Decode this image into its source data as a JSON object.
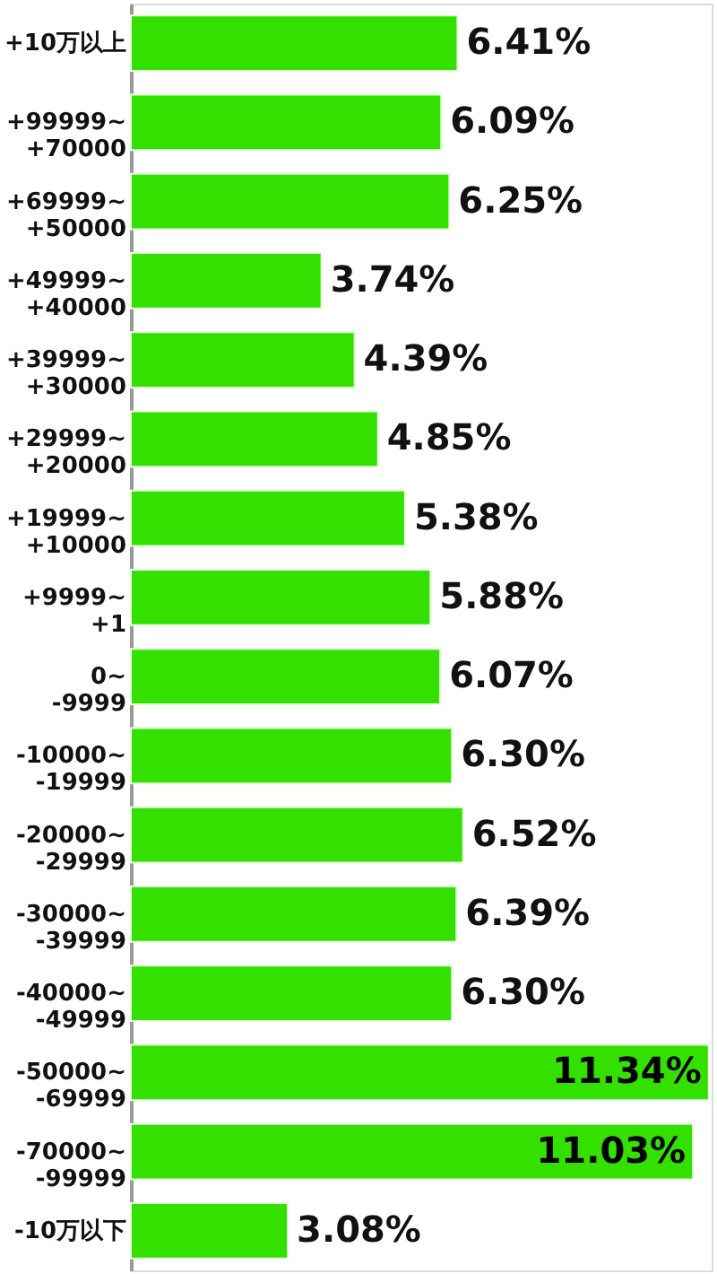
{
  "chart_data": {
    "type": "bar",
    "orientation": "horizontal",
    "categories": [
      "+10万以上",
      "+99999~+70000",
      "+69999~+50000",
      "+49999~+40000",
      "+39999~+30000",
      "+29999~+20000",
      "+19999~+10000",
      "+9999~+1",
      "0~-9999",
      "-10000~-19999",
      "-20000~-29999",
      "-30000~-39999",
      "-40000~-49999",
      "-50000~-69999",
      "-70000~-99999",
      "-10万以下"
    ],
    "values": [
      6.41,
      6.09,
      6.25,
      3.74,
      4.39,
      4.85,
      5.38,
      5.88,
      6.07,
      6.3,
      6.52,
      6.39,
      6.3,
      11.34,
      11.03,
      3.08
    ],
    "value_labels": [
      "6.41%",
      "6.09%",
      "6.25%",
      "3.74%",
      "4.39%",
      "4.85%",
      "5.38%",
      "5.88%",
      "6.07%",
      "6.30%",
      "6.52%",
      "6.39%",
      "6.30%",
      "11.34%",
      "11.03%",
      "3.08%"
    ],
    "color": "#33e000"
  }
}
